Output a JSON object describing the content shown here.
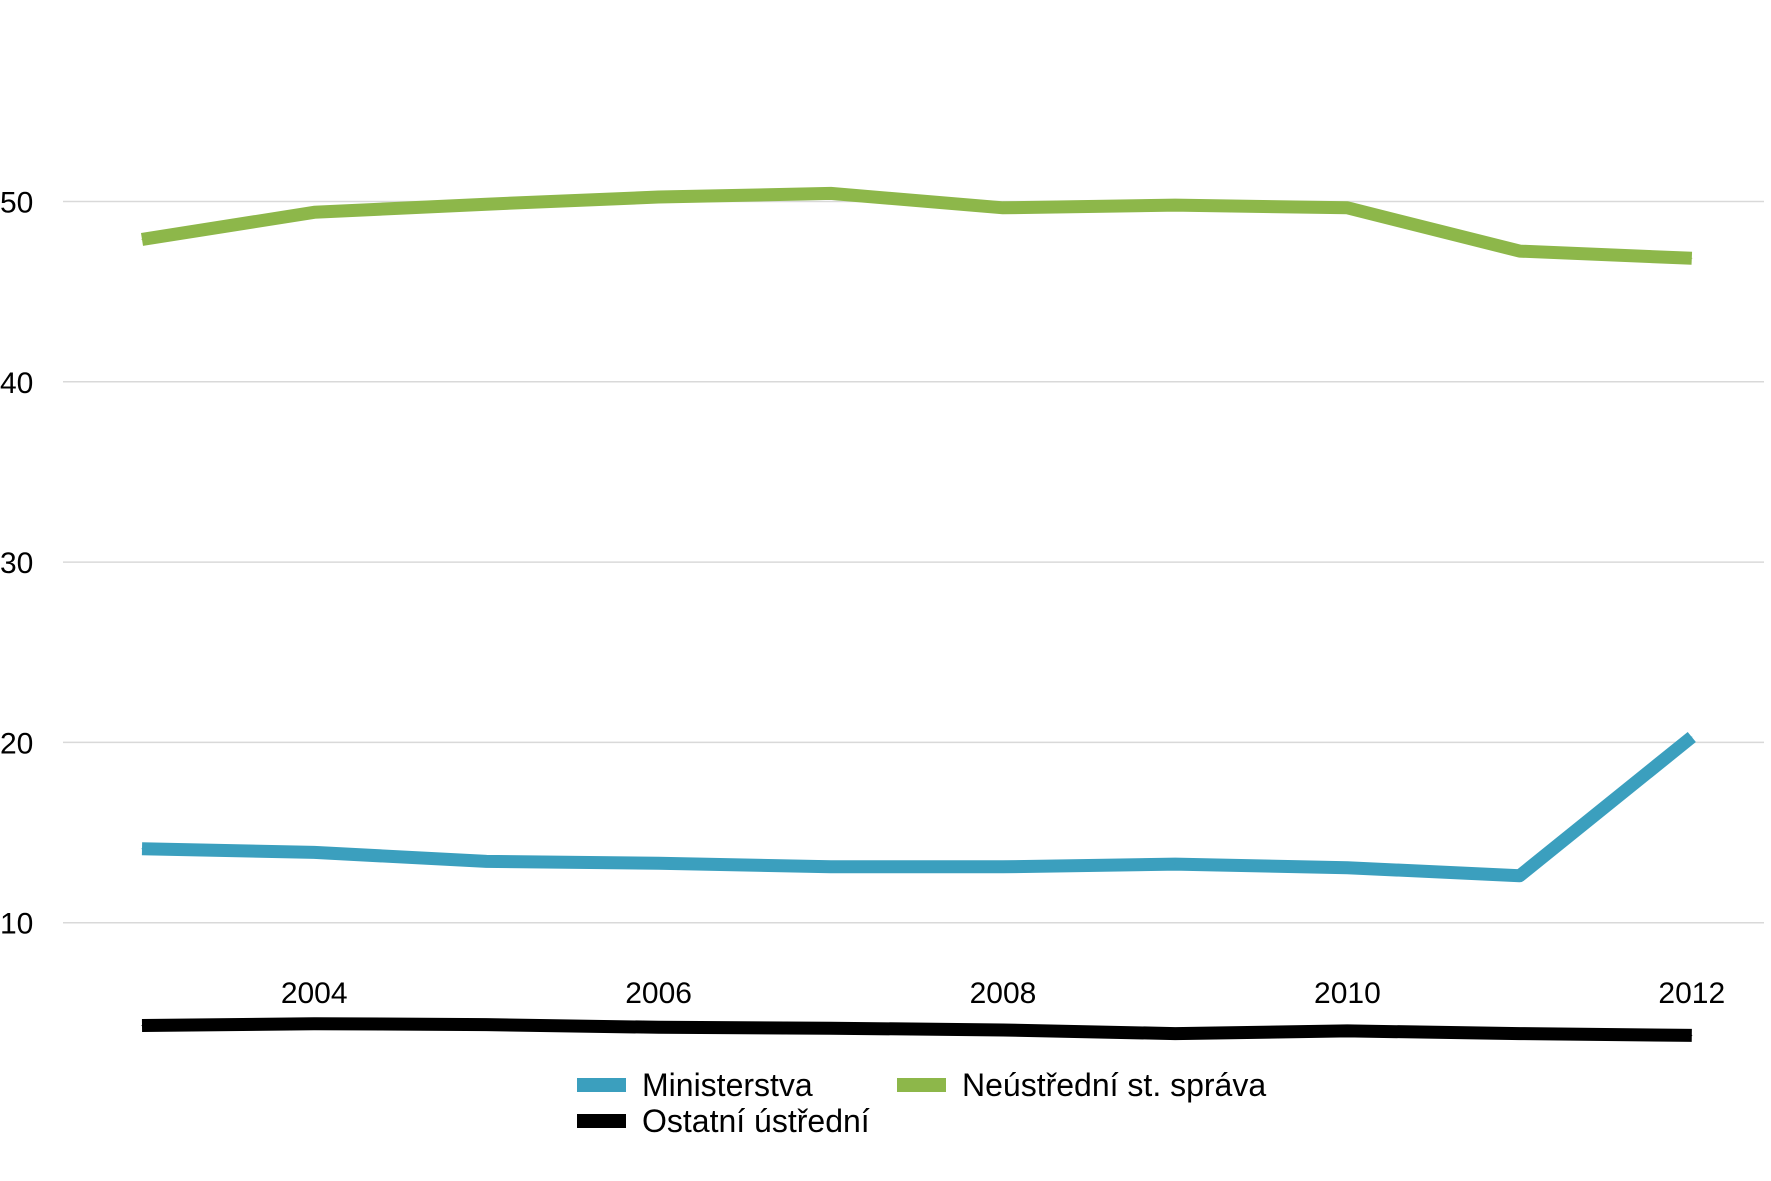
{
  "chart_data": {
    "type": "line",
    "title": "",
    "xlabel": "",
    "ylabel": "",
    "x": [
      2003,
      2004,
      2005,
      2006,
      2007,
      2008,
      2009,
      2010,
      2011,
      2012
    ],
    "x_ticks": [
      {
        "value": 2004,
        "label": "2004"
      },
      {
        "value": 2006,
        "label": "2006"
      },
      {
        "value": 2008,
        "label": "2008"
      },
      {
        "value": 2010,
        "label": "2010"
      },
      {
        "value": 2012,
        "label": "2012"
      }
    ],
    "y_ticks": [
      {
        "value": 10,
        "label": "10"
      },
      {
        "value": 20,
        "label": "20"
      },
      {
        "value": 30,
        "label": "30"
      },
      {
        "value": 40,
        "label": "40"
      },
      {
        "value": 50,
        "label": "50"
      }
    ],
    "xlim": [
      2002.0,
      2012.45
    ],
    "ylim": [
      0,
      52
    ],
    "grid": "horizontal",
    "legend_position": "bottom-center",
    "series": [
      {
        "name": "Ministerstva",
        "color": "#3b9fbe",
        "values": [
          14.1,
          13.9,
          13.4,
          13.3,
          13.1,
          13.1,
          13.25,
          13.05,
          12.6,
          20.3
        ]
      },
      {
        "name": "Neústřední st. správa",
        "color": "#8db74a",
        "values": [
          47.9,
          49.4,
          49.85,
          50.25,
          50.45,
          49.65,
          49.8,
          49.65,
          47.25,
          46.85
        ]
      },
      {
        "name": "Ostatní ústřední",
        "color": "#000000",
        "values": [
          4.3,
          4.4,
          4.35,
          4.2,
          4.15,
          4.05,
          3.85,
          4.0,
          3.85,
          3.75
        ]
      }
    ]
  }
}
